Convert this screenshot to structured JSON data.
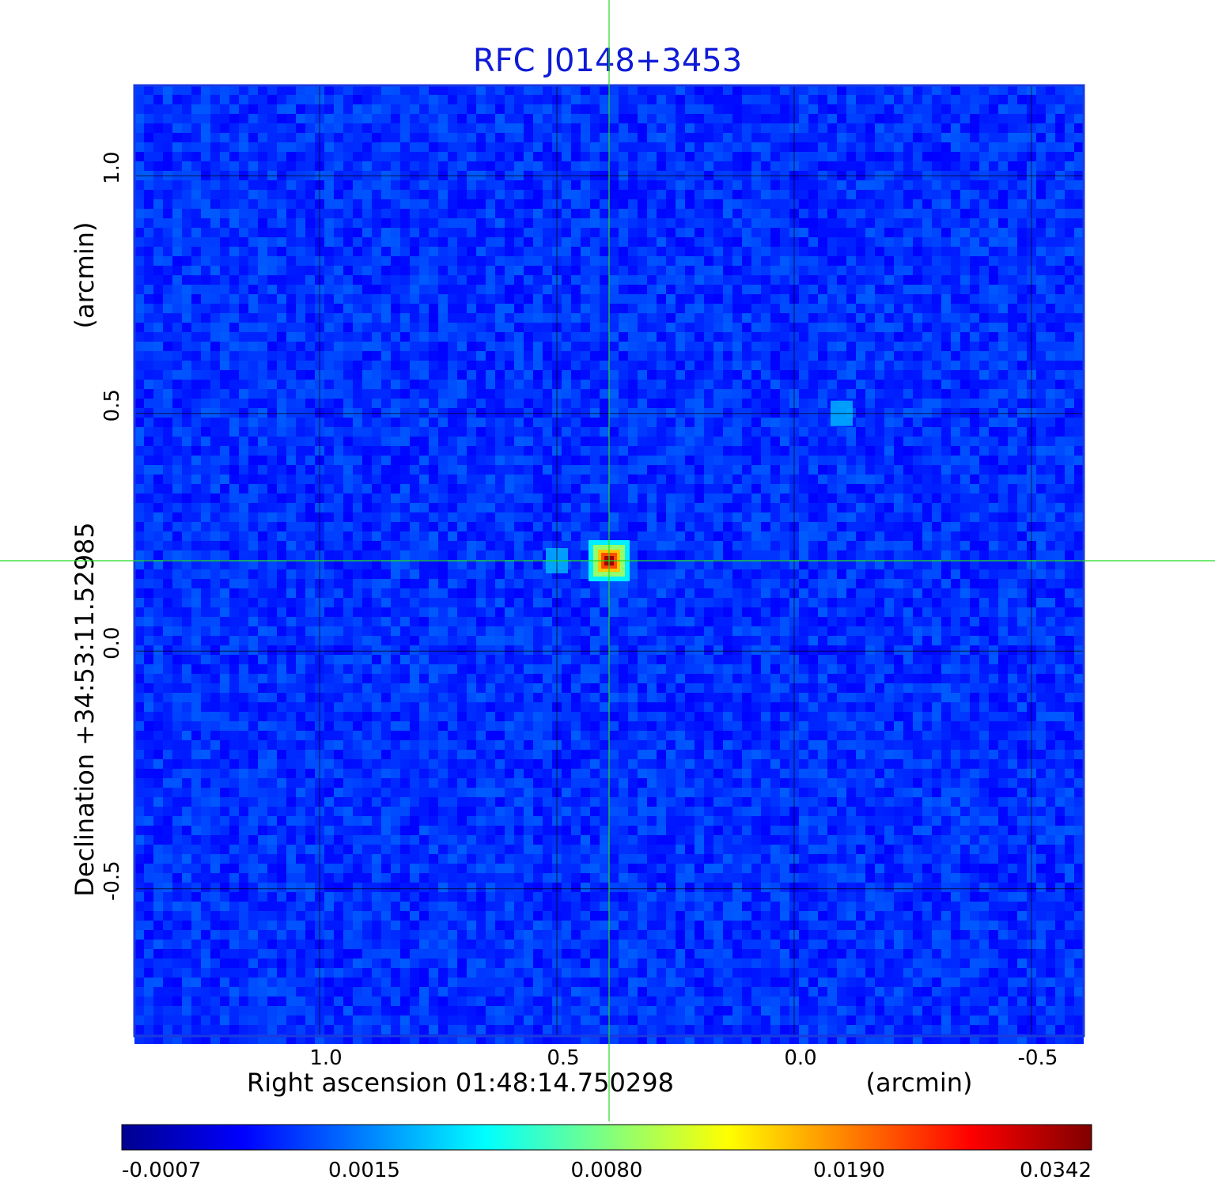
{
  "chart_data": {
    "type": "heatmap",
    "title": "RFC J0148+3453",
    "xlabel": "Right ascension  01:48:14.750298",
    "xunit": "(arcmin)",
    "ylabel": "Declination  +34:53:11.52985",
    "yunit": "(arcmin)",
    "x_ticks": [
      "1.0",
      "0.5",
      "0.0",
      "-0.5"
    ],
    "y_ticks": [
      "1.0",
      "0.5",
      "0.0",
      "-0.5"
    ],
    "xlim": [
      1.39,
      -0.61
    ],
    "ylim": [
      -0.81,
      1.19
    ],
    "x_tick_values": [
      1.0,
      0.5,
      0.0,
      -0.5
    ],
    "y_tick_values": [
      1.0,
      0.5,
      0.0,
      -0.5
    ],
    "grid": true,
    "crosshair": {
      "x": 0.39,
      "y": 0.19,
      "color": "#22dd22"
    },
    "colorbar": {
      "colormap": "jet",
      "labels": [
        "-0.0007",
        "0.0015",
        "0.0080",
        "0.0190",
        "0.0342"
      ],
      "min": -0.0007,
      "max": 0.0342
    },
    "features": [
      {
        "name": "peak",
        "x": 0.39,
        "y": 0.19,
        "value": 0.0342
      },
      {
        "name": "knot",
        "x": -0.1,
        "y": 0.5,
        "value": 0.0015
      },
      {
        "name": "knot",
        "x": 0.5,
        "y": 0.19,
        "value": 0.0015
      }
    ]
  }
}
